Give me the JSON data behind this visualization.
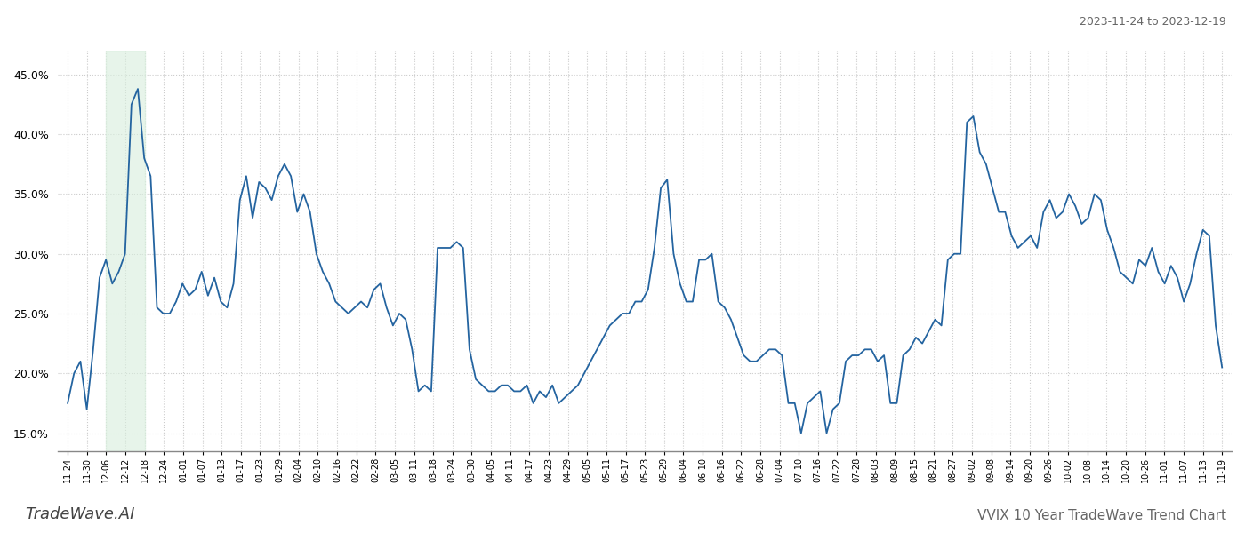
{
  "title_top_right": "2023-11-24 to 2023-12-19",
  "title_bottom_left": "TradeWave.AI",
  "title_bottom_right": "VVIX 10 Year TradeWave Trend Chart",
  "line_color": "#2464a0",
  "highlight_color": "#d8eedd",
  "highlight_alpha": 0.6,
  "ylim": [
    13.5,
    47.0
  ],
  "yticks": [
    15.0,
    20.0,
    25.0,
    30.0,
    35.0,
    40.0,
    45.0
  ],
  "background_color": "#ffffff",
  "grid_color": "#cccccc",
  "x_labels": [
    "11-24",
    "11-30",
    "12-06",
    "12-12",
    "12-18",
    "12-24",
    "01-01",
    "01-07",
    "01-13",
    "01-17",
    "01-23",
    "01-29",
    "02-04",
    "02-10",
    "02-16",
    "02-22",
    "02-28",
    "03-05",
    "03-11",
    "03-18",
    "03-24",
    "03-30",
    "04-05",
    "04-11",
    "04-17",
    "04-23",
    "04-29",
    "05-05",
    "05-11",
    "05-17",
    "05-23",
    "05-29",
    "06-04",
    "06-10",
    "06-16",
    "06-22",
    "06-28",
    "07-04",
    "07-10",
    "07-16",
    "07-22",
    "07-28",
    "08-03",
    "08-09",
    "08-15",
    "08-21",
    "08-27",
    "09-02",
    "09-08",
    "09-14",
    "09-20",
    "09-26",
    "10-02",
    "10-08",
    "10-14",
    "10-20",
    "10-26",
    "11-01",
    "11-07",
    "11-13",
    "11-19"
  ],
  "highlight_start_label": "12-06",
  "highlight_end_label": "12-18",
  "y_values": [
    17.5,
    20.0,
    21.0,
    17.0,
    22.0,
    28.0,
    29.5,
    27.5,
    28.5,
    30.0,
    42.5,
    43.8,
    38.0,
    36.5,
    25.5,
    25.0,
    25.0,
    26.0,
    27.5,
    26.5,
    27.0,
    28.5,
    26.5,
    28.0,
    26.0,
    25.5,
    27.5,
    34.5,
    36.5,
    33.0,
    36.0,
    35.5,
    34.5,
    36.5,
    37.5,
    36.5,
    33.5,
    35.0,
    33.5,
    30.0,
    28.5,
    27.5,
    26.0,
    25.5,
    25.0,
    25.5,
    26.0,
    25.5,
    27.0,
    27.5,
    25.5,
    24.0,
    25.0,
    24.5,
    22.0,
    18.5,
    19.0,
    18.5,
    30.5,
    30.5,
    30.5,
    31.0,
    30.5,
    22.0,
    19.5,
    19.0,
    18.5,
    18.5,
    19.0,
    19.0,
    18.5,
    18.5,
    19.0,
    17.5,
    18.5,
    18.0,
    19.0,
    17.5,
    18.0,
    18.5,
    19.0,
    20.0,
    21.0,
    22.0,
    23.0,
    24.0,
    24.5,
    25.0,
    25.0,
    26.0,
    26.0,
    27.0,
    30.5,
    35.5,
    36.2,
    30.0,
    27.5,
    26.0,
    26.0,
    29.5,
    29.5,
    30.0,
    26.0,
    25.5,
    24.5,
    23.0,
    21.5,
    21.0,
    21.0,
    21.5,
    22.0,
    22.0,
    21.5,
    17.5,
    17.5,
    15.0,
    17.5,
    18.0,
    18.5,
    15.0,
    17.0,
    17.5,
    21.0,
    21.5,
    21.5,
    22.0,
    22.0,
    21.0,
    21.5,
    17.5,
    17.5,
    21.5,
    22.0,
    23.0,
    22.5,
    23.5,
    24.5,
    24.0,
    29.5,
    30.0,
    30.0,
    41.0,
    41.5,
    38.5,
    37.5,
    35.5,
    33.5,
    33.5,
    31.5,
    30.5,
    31.0,
    31.5,
    30.5,
    33.5,
    34.5,
    33.0,
    33.5,
    35.0,
    34.0,
    32.5,
    33.0,
    35.0,
    34.5,
    32.0,
    30.5,
    28.5,
    28.0,
    27.5,
    29.5,
    29.0,
    30.5,
    28.5,
    27.5,
    29.0,
    28.0,
    26.0,
    27.5,
    30.0,
    32.0,
    31.5,
    24.0,
    20.5
  ]
}
